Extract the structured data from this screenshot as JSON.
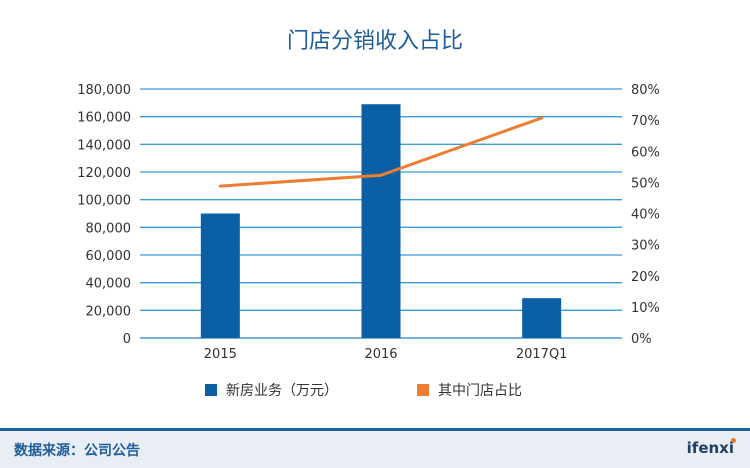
{
  "chart_data": {
    "type": "bar",
    "title": "门店分销收入占比",
    "categories": [
      "2015",
      "2016",
      "2017Q1"
    ],
    "series": [
      {
        "name": "新房业务（万元）",
        "type": "bar",
        "axis": "left",
        "values": [
          90000,
          169000,
          28800
        ]
      },
      {
        "name": "其中门店占比",
        "type": "line",
        "axis": "right",
        "values": [
          48.8,
          52.3,
          70.7
        ]
      }
    ],
    "y_left": {
      "min": 0,
      "max": 180000,
      "step": 20000,
      "ticks": [
        "0",
        "20,000",
        "40,000",
        "60,000",
        "80,000",
        "100,000",
        "120,000",
        "140,000",
        "160,000",
        "180,000"
      ]
    },
    "y_right": {
      "min": 0,
      "max": 80,
      "step": 10,
      "ticks": [
        "0%",
        "10%",
        "20%",
        "30%",
        "40%",
        "50%",
        "60%",
        "70%",
        "80%"
      ]
    },
    "grid": true,
    "legend": "bottom",
    "colors": {
      "bar": "#0b5fa5",
      "line": "#ed7d31",
      "grid": "#3a9bd5",
      "title": "#1f5e9b"
    }
  },
  "footer": {
    "source": "数据来源：公司公告",
    "brand": "ifenxi"
  }
}
